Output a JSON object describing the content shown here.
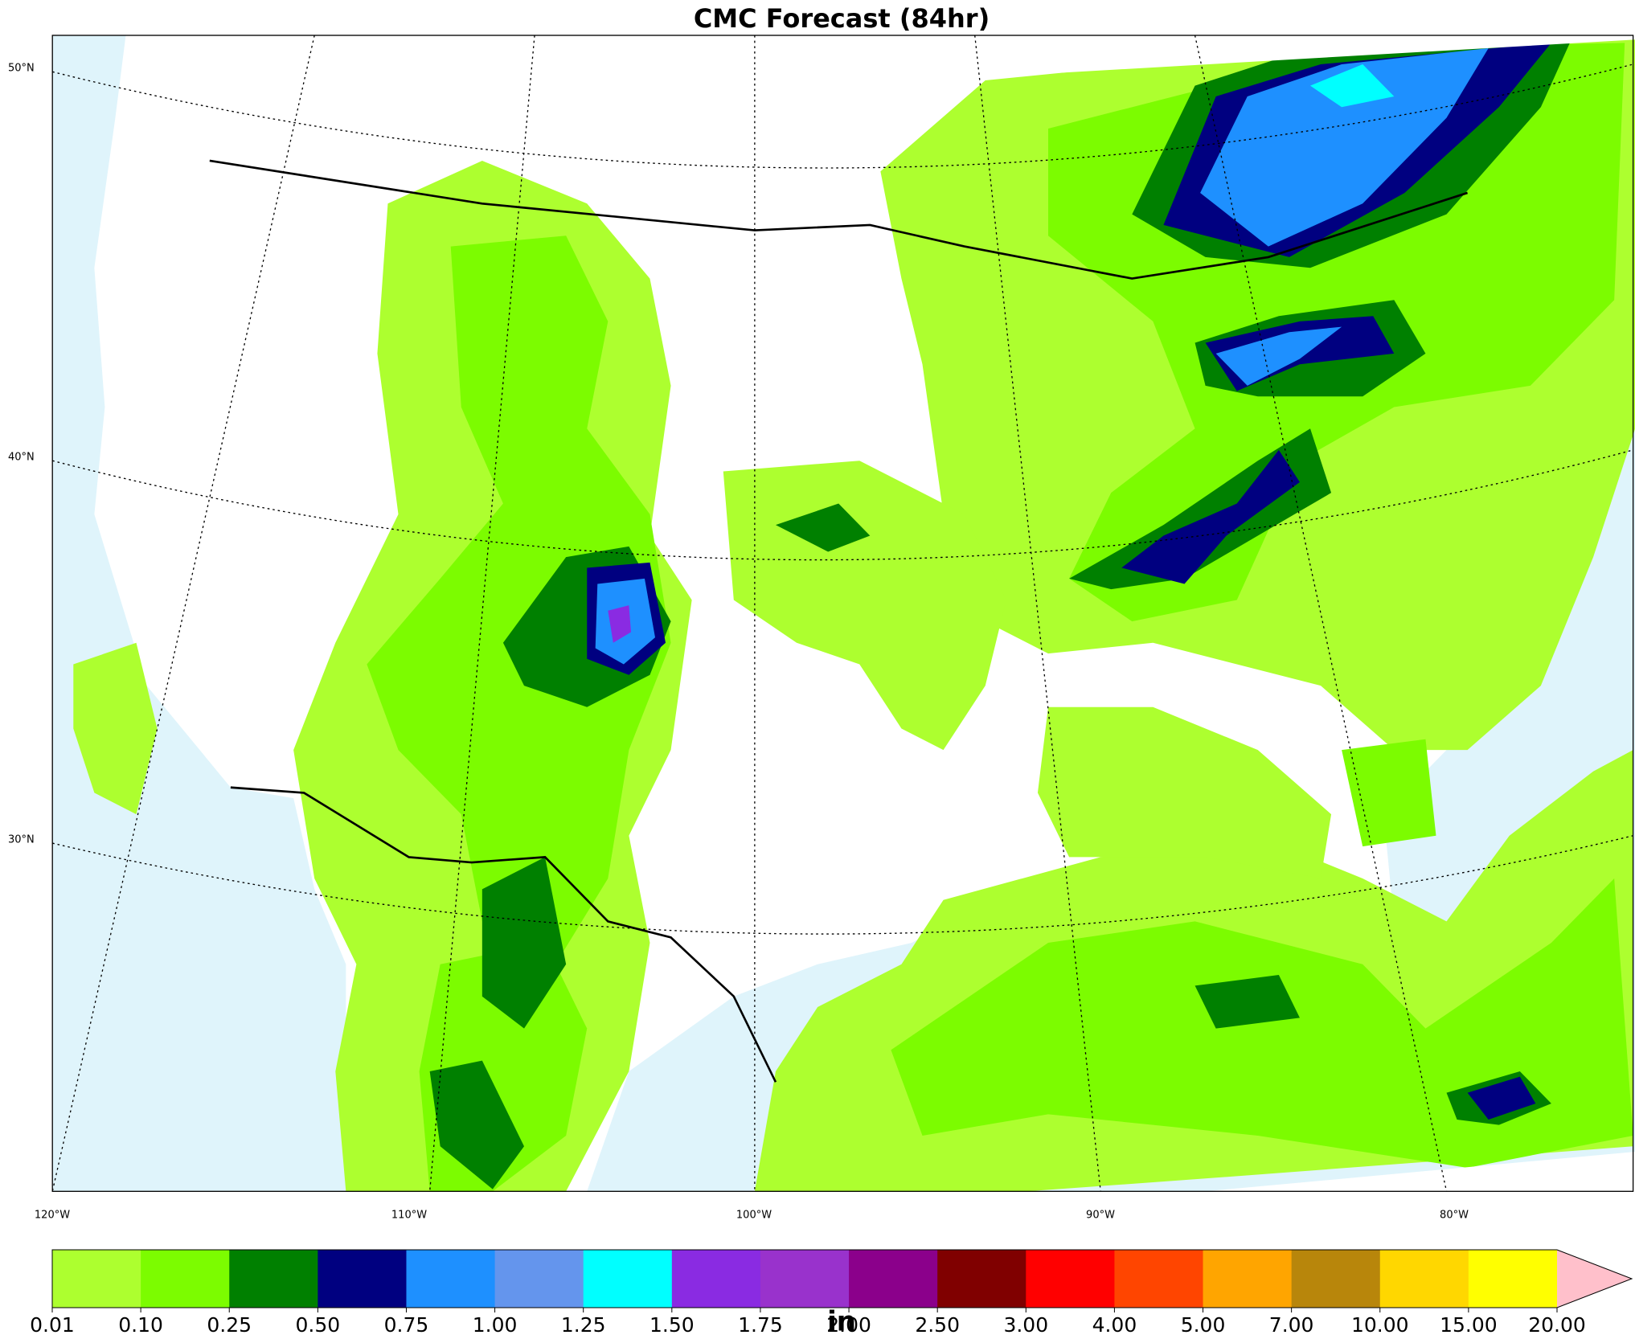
{
  "map": {
    "title": "CMC Forecast (84hr)",
    "lat_labels": [
      "50°N",
      "40°N",
      "30°N"
    ],
    "lon_labels": [
      "120°W",
      "110°W",
      "100°W",
      "90°W",
      "80°W"
    ]
  },
  "colorbar": {
    "levels": [
      {
        "value": 0.01,
        "label": "0.01"
      },
      {
        "value": 0.1,
        "label": "0.10"
      },
      {
        "value": 0.25,
        "label": "0.25"
      },
      {
        "value": 0.5,
        "label": "0.50"
      },
      {
        "value": 0.75,
        "label": "0.75"
      },
      {
        "value": 1,
        "label": "1.00"
      },
      {
        "value": 1.25,
        "label": "1.25"
      },
      {
        "value": 1.5,
        "label": "1.50"
      },
      {
        "value": 1.75,
        "label": "1.75"
      },
      {
        "value": 2,
        "label": "2.00"
      },
      {
        "value": 2.5,
        "label": "2.50"
      },
      {
        "value": 3,
        "label": "3.00"
      },
      {
        "value": 4,
        "label": "4.00"
      },
      {
        "value": 5,
        "label": "5.00"
      },
      {
        "value": 7,
        "label": "7.00"
      },
      {
        "value": 10,
        "label": "10.00"
      },
      {
        "value": 15,
        "label": "15.00"
      },
      {
        "value": 20,
        "label": "20.00"
      }
    ],
    "colors": [
      "#adff2f",
      "#7cfc00",
      "#008000",
      "#000080",
      "#1e90ff",
      "#6495ed",
      "#00ffff",
      "#8a2be2",
      "#9932cc",
      "#8b008b",
      "#800000",
      "#ff0000",
      "#ff4500",
      "#ffa500",
      "#b8860b",
      "#ffd700",
      "#ffff00"
    ],
    "extend_color": "#ffc0cb",
    "unit": "in"
  }
}
